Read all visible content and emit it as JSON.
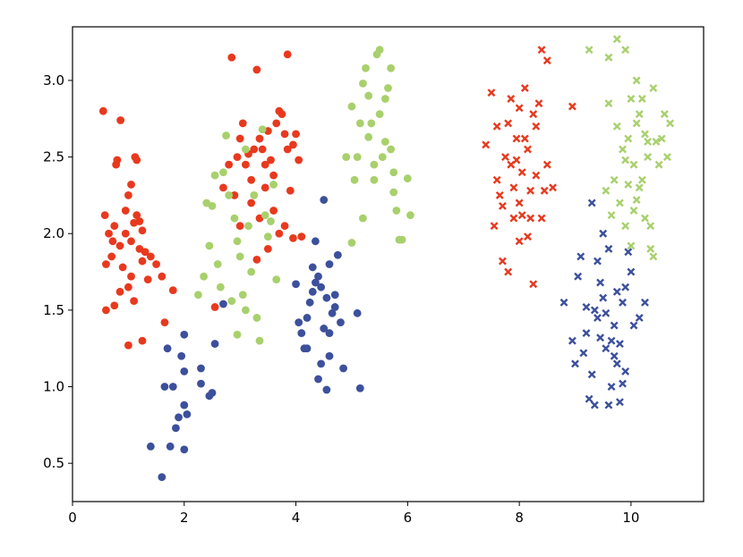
{
  "chart_data": {
    "type": "scatter",
    "title": "",
    "xlabel": "",
    "ylabel": "",
    "xlim": [
      0,
      11.3
    ],
    "ylim": [
      0.25,
      3.35
    ],
    "grid": false,
    "x_ticks": [
      {
        "value": 0,
        "label": "0"
      },
      {
        "value": 2,
        "label": "2"
      },
      {
        "value": 4,
        "label": "4"
      },
      {
        "value": 6,
        "label": "6"
      },
      {
        "value": 8,
        "label": "8"
      },
      {
        "value": 10,
        "label": "10"
      }
    ],
    "y_ticks": [
      {
        "value": 0.5,
        "label": "0.5"
      },
      {
        "value": 1.0,
        "label": "1.0"
      },
      {
        "value": 1.5,
        "label": "1.5"
      },
      {
        "value": 2.0,
        "label": "2.0"
      },
      {
        "value": 2.5,
        "label": "2.5"
      },
      {
        "value": 3.0,
        "label": "3.0"
      }
    ],
    "series": [
      {
        "color": "#e8391e",
        "marker": "circle",
        "points": [
          [
            0.55,
            2.8
          ],
          [
            0.65,
            2.0
          ],
          [
            0.58,
            2.12
          ],
          [
            0.72,
            1.95
          ],
          [
            0.78,
            2.45
          ],
          [
            0.8,
            2.48
          ],
          [
            0.86,
            2.74
          ],
          [
            0.75,
            2.05
          ],
          [
            0.9,
            1.78
          ],
          [
            0.95,
            2.15
          ],
          [
            1.0,
            2.25
          ],
          [
            1.05,
            2.32
          ],
          [
            1.1,
            2.07
          ],
          [
            1.12,
            2.5
          ],
          [
            1.15,
            2.48
          ],
          [
            1.2,
            2.08
          ],
          [
            1.25,
            2.02
          ],
          [
            1.3,
            1.88
          ],
          [
            0.6,
            1.5
          ],
          [
            0.75,
            1.53
          ],
          [
            0.85,
            1.62
          ],
          [
            1.0,
            1.65
          ],
          [
            1.05,
            1.72
          ],
          [
            1.1,
            1.56
          ],
          [
            1.25,
            1.82
          ],
          [
            1.4,
            1.85
          ],
          [
            1.5,
            1.8
          ],
          [
            1.6,
            1.72
          ],
          [
            1.8,
            1.63
          ],
          [
            1.65,
            1.42
          ],
          [
            1.0,
            1.27
          ],
          [
            1.25,
            1.3
          ],
          [
            0.6,
            1.8
          ],
          [
            0.7,
            1.85
          ],
          [
            0.85,
            1.92
          ],
          [
            0.95,
            2.0
          ],
          [
            1.05,
            1.95
          ],
          [
            1.15,
            2.12
          ],
          [
            1.2,
            1.9
          ],
          [
            1.35,
            1.7
          ],
          [
            2.55,
            1.52
          ],
          [
            2.7,
            2.3
          ],
          [
            2.8,
            2.45
          ],
          [
            2.85,
            3.15
          ],
          [
            2.95,
            2.5
          ],
          [
            3.0,
            2.62
          ],
          [
            3.05,
            2.72
          ],
          [
            3.1,
            2.45
          ],
          [
            3.15,
            2.52
          ],
          [
            3.2,
            2.35
          ],
          [
            3.25,
            2.55
          ],
          [
            3.3,
            3.07
          ],
          [
            3.35,
            2.62
          ],
          [
            3.4,
            2.55
          ],
          [
            3.45,
            2.45
          ],
          [
            3.5,
            2.67
          ],
          [
            3.55,
            2.48
          ],
          [
            3.6,
            2.38
          ],
          [
            3.65,
            2.72
          ],
          [
            3.7,
            2.8
          ],
          [
            3.75,
            2.78
          ],
          [
            3.8,
            2.65
          ],
          [
            3.85,
            2.55
          ],
          [
            3.9,
            2.28
          ],
          [
            3.95,
            2.58
          ],
          [
            4.0,
            2.65
          ],
          [
            3.8,
            2.05
          ],
          [
            3.95,
            1.97
          ],
          [
            4.1,
            1.98
          ],
          [
            3.3,
            1.83
          ],
          [
            3.35,
            2.1
          ],
          [
            3.45,
            2.3
          ],
          [
            3.6,
            2.15
          ],
          [
            3.7,
            2.0
          ],
          [
            3.85,
            3.17
          ],
          [
            3.5,
            1.9
          ],
          [
            4.05,
            2.48
          ],
          [
            2.9,
            2.25
          ],
          [
            3.2,
            2.2
          ],
          [
            3.0,
            2.05
          ]
        ]
      },
      {
        "color": "#3c509c",
        "marker": "circle",
        "points": [
          [
            1.4,
            0.61
          ],
          [
            1.6,
            0.41
          ],
          [
            1.65,
            1.0
          ],
          [
            1.7,
            1.25
          ],
          [
            1.75,
            0.61
          ],
          [
            1.8,
            1.0
          ],
          [
            1.85,
            0.73
          ],
          [
            1.9,
            0.8
          ],
          [
            1.95,
            1.2
          ],
          [
            2.0,
            0.88
          ],
          [
            2.0,
            1.1
          ],
          [
            2.0,
            0.59
          ],
          [
            2.0,
            1.34
          ],
          [
            2.05,
            0.82
          ],
          [
            2.3,
            1.12
          ],
          [
            2.3,
            1.02
          ],
          [
            2.45,
            0.94
          ],
          [
            2.5,
            0.96
          ],
          [
            2.55,
            1.28
          ],
          [
            2.7,
            1.54
          ],
          [
            4.0,
            1.67
          ],
          [
            4.05,
            1.42
          ],
          [
            4.1,
            1.35
          ],
          [
            4.15,
            1.25
          ],
          [
            4.2,
            1.45
          ],
          [
            4.25,
            1.55
          ],
          [
            4.3,
            1.62
          ],
          [
            4.35,
            1.68
          ],
          [
            4.4,
            1.72
          ],
          [
            4.4,
            1.05
          ],
          [
            4.45,
            1.15
          ],
          [
            4.5,
            1.38
          ],
          [
            4.55,
            1.58
          ],
          [
            4.55,
            0.98
          ],
          [
            4.6,
            1.35
          ],
          [
            4.65,
            1.48
          ],
          [
            4.7,
            1.52
          ],
          [
            4.75,
            1.86
          ],
          [
            4.8,
            1.42
          ],
          [
            4.85,
            1.12
          ],
          [
            4.5,
            2.22
          ],
          [
            4.35,
            1.95
          ],
          [
            4.6,
            1.8
          ],
          [
            4.7,
            1.6
          ],
          [
            5.1,
            1.48
          ],
          [
            5.15,
            0.99
          ],
          [
            4.2,
            1.25
          ],
          [
            4.3,
            1.78
          ],
          [
            4.45,
            1.65
          ],
          [
            4.6,
            1.2
          ]
        ]
      },
      {
        "color": "#a8d06c",
        "marker": "circle",
        "points": [
          [
            2.25,
            1.6
          ],
          [
            2.35,
            1.72
          ],
          [
            2.4,
            2.2
          ],
          [
            2.45,
            1.92
          ],
          [
            2.5,
            2.18
          ],
          [
            2.55,
            2.38
          ],
          [
            2.6,
            1.8
          ],
          [
            2.65,
            1.65
          ],
          [
            2.7,
            2.4
          ],
          [
            2.75,
            2.64
          ],
          [
            2.8,
            2.25
          ],
          [
            2.85,
            1.56
          ],
          [
            2.9,
            2.1
          ],
          [
            2.95,
            1.95
          ],
          [
            3.0,
            1.85
          ],
          [
            3.05,
            1.6
          ],
          [
            3.1,
            2.55
          ],
          [
            3.15,
            2.05
          ],
          [
            3.2,
            1.75
          ],
          [
            3.25,
            2.25
          ],
          [
            3.3,
            1.45
          ],
          [
            3.35,
            1.3
          ],
          [
            3.4,
            2.68
          ],
          [
            3.45,
            2.12
          ],
          [
            3.5,
            1.98
          ],
          [
            3.55,
            2.08
          ],
          [
            3.6,
            2.32
          ],
          [
            3.65,
            1.7
          ],
          [
            2.95,
            1.34
          ],
          [
            3.1,
            1.5
          ],
          [
            4.9,
            2.5
          ],
          [
            5.0,
            2.83
          ],
          [
            5.05,
            2.35
          ],
          [
            5.1,
            2.5
          ],
          [
            5.15,
            2.72
          ],
          [
            5.2,
            2.98
          ],
          [
            5.25,
            3.08
          ],
          [
            5.3,
            2.63
          ],
          [
            5.35,
            2.72
          ],
          [
            5.4,
            2.35
          ],
          [
            5.45,
            3.17
          ],
          [
            5.5,
            3.2
          ],
          [
            5.55,
            2.5
          ],
          [
            5.6,
            2.88
          ],
          [
            5.65,
            2.95
          ],
          [
            5.7,
            3.08
          ],
          [
            5.75,
            2.27
          ],
          [
            5.8,
            2.15
          ],
          [
            5.85,
            1.96
          ],
          [
            5.9,
            1.96
          ],
          [
            6.0,
            2.36
          ],
          [
            6.05,
            2.12
          ],
          [
            5.6,
            2.6
          ],
          [
            5.4,
            2.45
          ],
          [
            5.7,
            2.55
          ],
          [
            5.2,
            2.1
          ],
          [
            5.0,
            1.94
          ],
          [
            5.5,
            2.78
          ],
          [
            5.75,
            2.4
          ],
          [
            5.3,
            2.9
          ]
        ]
      },
      {
        "color": "#e8391e",
        "marker": "x",
        "points": [
          [
            7.4,
            2.58
          ],
          [
            7.5,
            2.92
          ],
          [
            7.55,
            2.05
          ],
          [
            7.6,
            2.35
          ],
          [
            7.65,
            2.25
          ],
          [
            7.7,
            2.18
          ],
          [
            7.75,
            2.5
          ],
          [
            7.8,
            2.72
          ],
          [
            7.85,
            2.45
          ],
          [
            7.9,
            2.1
          ],
          [
            7.95,
            2.62
          ],
          [
            8.0,
            2.82
          ],
          [
            8.0,
            1.95
          ],
          [
            8.05,
            2.4
          ],
          [
            8.1,
            2.95
          ],
          [
            8.15,
            2.55
          ],
          [
            8.2,
            2.28
          ],
          [
            8.25,
            1.67
          ],
          [
            8.3,
            2.7
          ],
          [
            8.35,
            2.85
          ],
          [
            8.4,
            3.2
          ],
          [
            8.45,
            2.28
          ],
          [
            8.5,
            3.13
          ],
          [
            8.6,
            2.3
          ],
          [
            8.95,
            2.83
          ],
          [
            7.7,
            1.82
          ],
          [
            7.8,
            1.75
          ],
          [
            7.9,
            2.3
          ],
          [
            8.05,
            2.12
          ],
          [
            8.2,
            2.1
          ],
          [
            8.3,
            2.38
          ],
          [
            8.1,
            2.62
          ],
          [
            7.95,
            2.48
          ],
          [
            7.85,
            2.88
          ],
          [
            8.0,
            2.2
          ],
          [
            8.15,
            1.98
          ],
          [
            8.25,
            2.78
          ],
          [
            8.4,
            2.1
          ],
          [
            7.6,
            2.7
          ],
          [
            8.5,
            2.45
          ]
        ]
      },
      {
        "color": "#3c509c",
        "marker": "x",
        "points": [
          [
            8.8,
            1.55
          ],
          [
            8.95,
            1.3
          ],
          [
            9.0,
            1.15
          ],
          [
            9.05,
            1.72
          ],
          [
            9.1,
            1.85
          ],
          [
            9.15,
            1.22
          ],
          [
            9.2,
            1.52
          ],
          [
            9.25,
            0.92
          ],
          [
            9.3,
            1.08
          ],
          [
            9.35,
            0.88
          ],
          [
            9.4,
            1.45
          ],
          [
            9.45,
            1.32
          ],
          [
            9.5,
            1.58
          ],
          [
            9.55,
            1.25
          ],
          [
            9.6,
            0.88
          ],
          [
            9.65,
            1.0
          ],
          [
            9.7,
            1.2
          ],
          [
            9.75,
            1.62
          ],
          [
            9.8,
            0.9
          ],
          [
            9.85,
            1.02
          ],
          [
            9.9,
            1.65
          ],
          [
            9.95,
            1.88
          ],
          [
            10.0,
            1.75
          ],
          [
            10.05,
            1.4
          ],
          [
            10.15,
            1.45
          ],
          [
            10.25,
            1.55
          ],
          [
            9.3,
            2.2
          ],
          [
            9.5,
            2.0
          ],
          [
            9.4,
            1.82
          ],
          [
            9.6,
            1.9
          ],
          [
            9.7,
            1.4
          ],
          [
            9.2,
            1.35
          ],
          [
            9.8,
            1.28
          ],
          [
            9.9,
            1.1
          ],
          [
            9.35,
            1.5
          ],
          [
            9.45,
            1.68
          ],
          [
            9.55,
            1.48
          ],
          [
            9.65,
            1.3
          ],
          [
            9.75,
            1.15
          ],
          [
            9.85,
            1.55
          ]
        ]
      },
      {
        "color": "#a8d06c",
        "marker": "x",
        "points": [
          [
            9.25,
            3.2
          ],
          [
            9.6,
            3.15
          ],
          [
            9.75,
            3.27
          ],
          [
            9.9,
            3.2
          ],
          [
            10.1,
            3.0
          ],
          [
            10.2,
            2.88
          ],
          [
            10.3,
            2.6
          ],
          [
            10.4,
            2.95
          ],
          [
            10.5,
            2.45
          ],
          [
            10.6,
            2.78
          ],
          [
            10.7,
            2.72
          ],
          [
            9.7,
            2.35
          ],
          [
            9.8,
            2.2
          ],
          [
            9.9,
            2.05
          ],
          [
            9.95,
            2.62
          ],
          [
            10.0,
            1.92
          ],
          [
            10.05,
            2.45
          ],
          [
            10.1,
            2.72
          ],
          [
            10.15,
            2.3
          ],
          [
            10.25,
            2.1
          ],
          [
            10.35,
            1.9
          ],
          [
            10.4,
            1.85
          ],
          [
            9.65,
            2.12
          ],
          [
            9.85,
            2.55
          ],
          [
            10.0,
            2.88
          ],
          [
            10.2,
            2.35
          ],
          [
            10.3,
            2.5
          ],
          [
            10.45,
            2.6
          ],
          [
            9.55,
            2.28
          ],
          [
            10.05,
            2.15
          ],
          [
            10.55,
            2.62
          ],
          [
            10.65,
            2.5
          ],
          [
            9.75,
            2.7
          ],
          [
            9.95,
            2.32
          ],
          [
            10.15,
            2.78
          ],
          [
            10.35,
            2.05
          ],
          [
            9.6,
            2.85
          ],
          [
            10.25,
            2.65
          ],
          [
            9.9,
            2.48
          ],
          [
            10.1,
            2.22
          ]
        ]
      }
    ]
  }
}
